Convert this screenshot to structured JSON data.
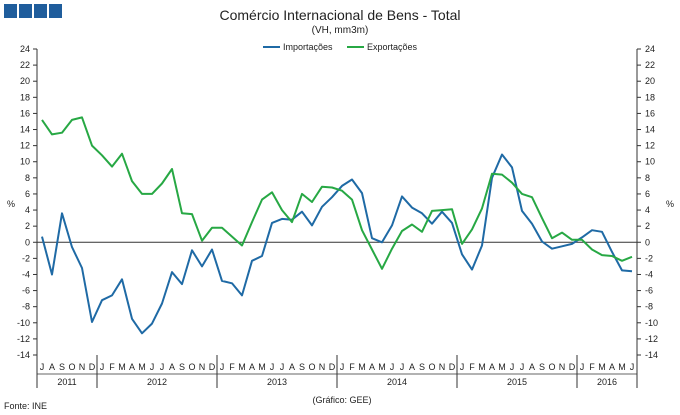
{
  "chart_data": {
    "type": "line",
    "title": "Comércio Internacional de Bens - Total",
    "subtitle": "(VH, mm3m)",
    "ylabel_left": "%",
    "ylabel_right": "%",
    "ylim": [
      -14,
      24
    ],
    "yticks": [
      -14,
      -12,
      -10,
      -8,
      -6,
      -4,
      -2,
      0,
      2,
      4,
      6,
      8,
      10,
      12,
      14,
      16,
      18,
      20,
      22,
      24
    ],
    "grid": false,
    "legend_position": "top-center",
    "months": [
      "J",
      "A",
      "S",
      "O",
      "N",
      "D",
      "J",
      "F",
      "M",
      "A",
      "M",
      "J",
      "J",
      "A",
      "S",
      "O",
      "N",
      "D",
      "J",
      "F",
      "M",
      "A",
      "M",
      "J",
      "J",
      "A",
      "S",
      "O",
      "N",
      "D",
      "J",
      "F",
      "M",
      "A",
      "M",
      "J",
      "J",
      "A",
      "S",
      "O",
      "N",
      "D",
      "J",
      "F",
      "M",
      "A",
      "M",
      "J",
      "J",
      "A",
      "S",
      "O",
      "N",
      "D",
      "J",
      "F",
      "M",
      "A",
      "M",
      "J"
    ],
    "years": [
      {
        "label": "2011",
        "start": 0,
        "end": 5
      },
      {
        "label": "2012",
        "start": 6,
        "end": 17
      },
      {
        "label": "2013",
        "start": 18,
        "end": 29
      },
      {
        "label": "2014",
        "start": 30,
        "end": 41
      },
      {
        "label": "2015",
        "start": 42,
        "end": 53
      },
      {
        "label": "2016",
        "start": 54,
        "end": 59
      }
    ],
    "series": [
      {
        "name": "Importações",
        "color": "#1f6aa5",
        "values": [
          0.7,
          -4.0,
          3.6,
          -0.6,
          -3.2,
          -9.9,
          -7.2,
          -6.6,
          -4.6,
          -9.5,
          -11.3,
          -10.1,
          -7.6,
          -3.7,
          -5.2,
          -1.0,
          -3.0,
          -0.9,
          -4.8,
          -5.1,
          -6.6,
          -2.3,
          -1.7,
          2.4,
          2.9,
          2.8,
          3.8,
          2.1,
          4.4,
          5.6,
          7.0,
          7.8,
          6.1,
          0.5,
          0.0,
          2.1,
          5.7,
          4.3,
          3.6,
          2.3,
          3.8,
          2.4,
          -1.5,
          -3.4,
          -0.4,
          8.0,
          10.9,
          9.3,
          3.9,
          2.3,
          0.1,
          -0.8,
          -0.5,
          -0.2,
          0.6,
          1.5,
          1.3,
          -1.2,
          -3.5,
          -3.6
        ]
      },
      {
        "name": "Exportações",
        "color": "#27a844",
        "values": [
          15.2,
          13.4,
          13.6,
          15.2,
          15.5,
          12.0,
          10.8,
          9.4,
          11.0,
          7.6,
          6.0,
          6.0,
          7.3,
          9.1,
          3.6,
          3.5,
          0.2,
          1.8,
          1.8,
          0.7,
          -0.4,
          2.5,
          5.3,
          6.2,
          4.0,
          2.5,
          6.0,
          5.0,
          6.9,
          6.8,
          6.4,
          5.3,
          1.5,
          -0.9,
          -3.3,
          -0.8,
          1.4,
          2.2,
          1.3,
          3.9,
          4.0,
          4.1,
          -0.2,
          1.6,
          4.2,
          8.5,
          8.4,
          7.4,
          6.0,
          5.6,
          3.0,
          0.5,
          1.2,
          0.3,
          0.3,
          -0.9,
          -1.6,
          -1.7,
          -2.3,
          -1.8
        ]
      }
    ]
  },
  "header": {
    "logo_squares": 4,
    "logo_color": "#1f5d9c"
  },
  "footer": {
    "source": "Fonte: INE",
    "credit": "(Gráfico: GEE)"
  }
}
